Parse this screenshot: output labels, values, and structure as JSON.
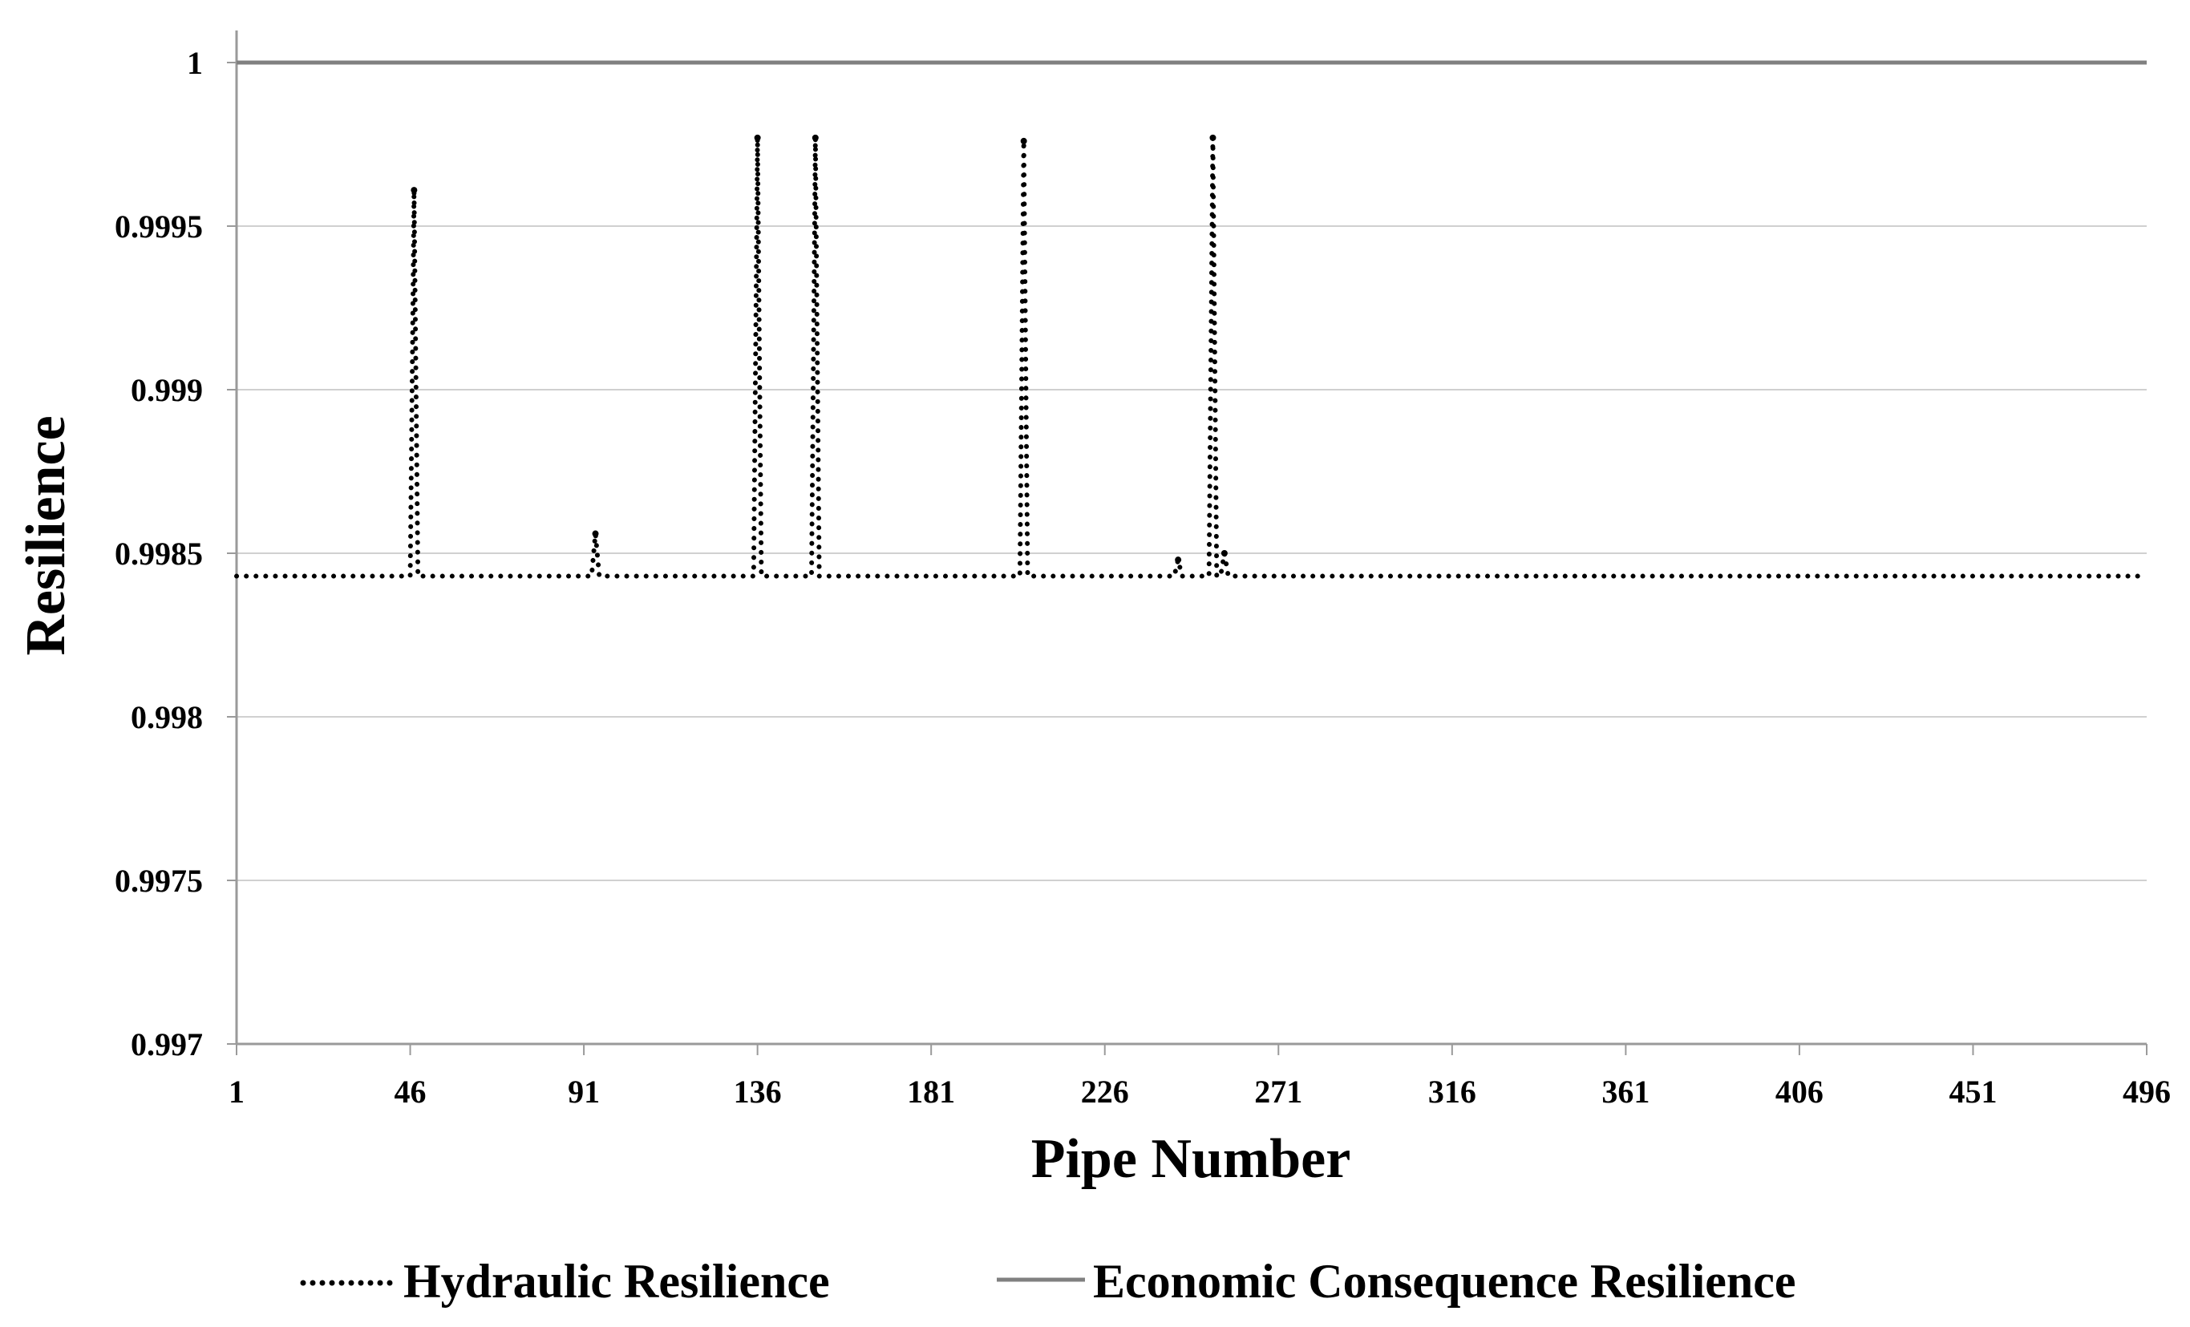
{
  "chart_data": {
    "type": "line",
    "xlabel": "Pipe Number",
    "ylabel": "Resilience",
    "x_range": [
      1,
      496
    ],
    "xticks": [
      "1",
      "46",
      "91",
      "136",
      "181",
      "226",
      "271",
      "316",
      "361",
      "406",
      "451",
      "496"
    ],
    "ylim": [
      0.997,
      1.0
    ],
    "yticks": [
      "0.997",
      "0.9975",
      "0.998",
      "0.9985",
      "0.999",
      "0.9995",
      "1"
    ],
    "grid": "horizontal",
    "legend_position": "bottom",
    "series": [
      {
        "name": "Hydraulic Resilience",
        "style": "dotted",
        "color": "#000000",
        "baseline": 0.99843,
        "peaks": [
          {
            "x": 47,
            "value": 0.99961
          },
          {
            "x": 94,
            "value": 0.99856
          },
          {
            "x": 136,
            "value": 0.99977
          },
          {
            "x": 151,
            "value": 0.99977
          },
          {
            "x": 205,
            "value": 0.99976
          },
          {
            "x": 245,
            "value": 0.99848
          },
          {
            "x": 254,
            "value": 0.99977
          },
          {
            "x": 257,
            "value": 0.9985
          }
        ]
      },
      {
        "name": "Economic Consequence Resilience",
        "style": "solid",
        "color": "#808080",
        "value": 1.0
      }
    ]
  }
}
